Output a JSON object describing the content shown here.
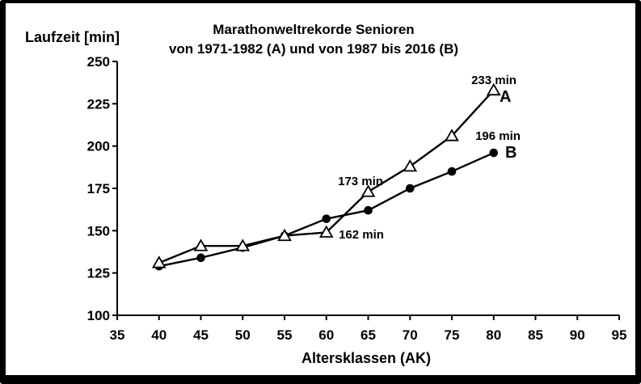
{
  "chart_data": {
    "type": "line",
    "title": "Marathonweltrekorde Senioren",
    "subtitle": "von 1971-1982 (A) und von  1987 bis 2016 (B)",
    "xlabel": "Altersklassen (AK)",
    "ylabel": "Laufzeit [min]",
    "x": [
      40,
      45,
      50,
      55,
      60,
      65,
      70,
      75,
      80
    ],
    "series": [
      {
        "name": "A",
        "label": "A",
        "marker": "open-triangle",
        "color": "#000000",
        "values": [
          131,
          141,
          141,
          147,
          149,
          173,
          188,
          206,
          233
        ]
      },
      {
        "name": "B",
        "label": "B",
        "marker": "filled-circle",
        "color": "#000000",
        "values": [
          129,
          134,
          140,
          147,
          157,
          162,
          175,
          185,
          196
        ]
      }
    ],
    "xlim": [
      35,
      95
    ],
    "ylim": [
      100,
      250
    ],
    "x_ticks": [
      35,
      40,
      45,
      50,
      55,
      60,
      65,
      70,
      75,
      80,
      85,
      90,
      95
    ],
    "y_ticks": [
      100,
      125,
      150,
      175,
      200,
      225,
      250
    ],
    "grid": false,
    "legend": "inline-labels",
    "background_color": "#ffffff",
    "foreground_color": "#000000",
    "annotations": [
      {
        "text": "233 min",
        "series": "A",
        "at_x": 80,
        "at_y": 233,
        "position": "above-point"
      },
      {
        "text": "196 min",
        "series": "B",
        "at_x": 80,
        "at_y": 196,
        "position": "above-point"
      },
      {
        "text": "173 min",
        "series": "A",
        "at_x": 65,
        "at_y": 173,
        "position": "above-left-of-point"
      },
      {
        "text": "162 min",
        "series": "B",
        "at_x": 65,
        "at_y": 162,
        "position": "below-left-of-point"
      }
    ]
  }
}
